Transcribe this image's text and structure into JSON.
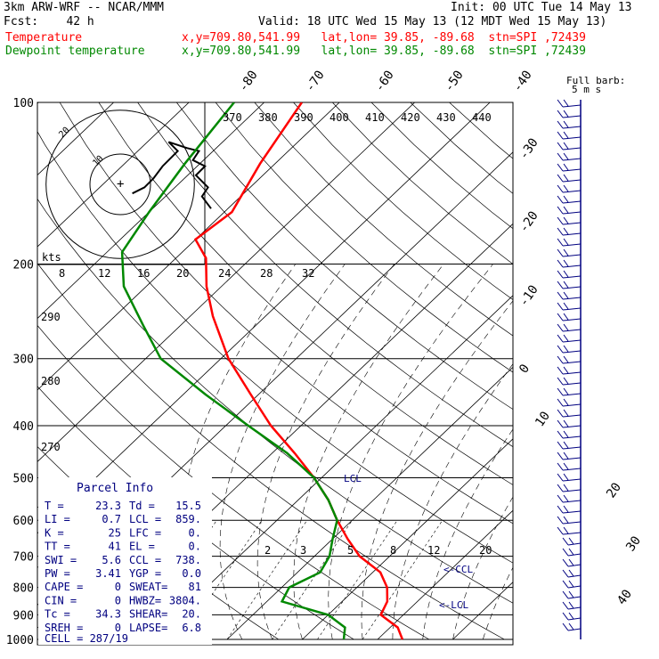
{
  "header": {
    "model": "3km ARW-WRF -- NCAR/MMM",
    "init": "Init: 00 UTC Tue 14 May 13",
    "fcst": "Fcst:    42 h",
    "valid": "Valid: 18 UTC Wed 15 May 13 (12 MDT Wed 15 May 13)",
    "temp_label": "Temperature",
    "temp_info": "x,y=709.80,541.99   lat,lon= 39.85, -89.68  stn=SPI ,72439",
    "dew_label": "Dewpoint temperature",
    "dew_info": "x,y=709.80,541.99   lat,lon= 39.85, -89.68  stn=SPI ,72439",
    "colors": {
      "temperature": "#ff0000",
      "dewpoint": "#008800",
      "parcel_info": "#000080"
    }
  },
  "chart_data": {
    "type": "skew-t",
    "ylabel_unit": "hPa",
    "pressure_levels": [
      100,
      200,
      300,
      400,
      500,
      600,
      700,
      800,
      900,
      1000
    ],
    "isotherm_labels": [
      "-80",
      "-70",
      "-60",
      "-50",
      "-40",
      "-30",
      "-20",
      "-10",
      "0",
      "10",
      "20",
      "30",
      "40"
    ],
    "theta_labels": [
      "370",
      "380",
      "390",
      "400",
      "410",
      "420",
      "430",
      "440"
    ],
    "mixing_ratio_labels": [
      "2",
      "3",
      "5",
      "8",
      "12",
      "20"
    ],
    "hodograph_speed_labels": [
      "8",
      "12",
      "16",
      "20",
      "24",
      "28",
      "32"
    ],
    "hodograph_unit": "kts",
    "hodograph_rings": [
      "10",
      "20"
    ],
    "side_labels": [
      "290",
      "280",
      "270"
    ],
    "lcl_text": "LCL",
    "ccl_text": "<-CCL",
    "lcl_arrow_text": "<-LCL",
    "barb_legend": [
      "Full barb:",
      "5 m s"
    ],
    "temperature_profile": [
      {
        "p": 100,
        "t": -65
      },
      {
        "p": 130,
        "t": -62
      },
      {
        "p": 160,
        "t": -59
      },
      {
        "p": 180,
        "t": -60
      },
      {
        "p": 195,
        "t": -56
      },
      {
        "p": 220,
        "t": -52
      },
      {
        "p": 250,
        "t": -47
      },
      {
        "p": 300,
        "t": -39
      },
      {
        "p": 350,
        "t": -31
      },
      {
        "p": 400,
        "t": -24
      },
      {
        "p": 450,
        "t": -17
      },
      {
        "p": 500,
        "t": -11
      },
      {
        "p": 550,
        "t": -6
      },
      {
        "p": 600,
        "t": -2
      },
      {
        "p": 650,
        "t": 2
      },
      {
        "p": 700,
        "t": 6
      },
      {
        "p": 750,
        "t": 11
      },
      {
        "p": 800,
        "t": 14
      },
      {
        "p": 850,
        "t": 16
      },
      {
        "p": 900,
        "t": 17
      },
      {
        "p": 950,
        "t": 21
      },
      {
        "p": 1000,
        "t": 23.3
      }
    ],
    "dewpoint_profile": [
      {
        "p": 100,
        "t": -74
      },
      {
        "p": 130,
        "t": -72
      },
      {
        "p": 160,
        "t": -70
      },
      {
        "p": 190,
        "t": -68
      },
      {
        "p": 220,
        "t": -63
      },
      {
        "p": 260,
        "t": -55
      },
      {
        "p": 300,
        "t": -48
      },
      {
        "p": 350,
        "t": -37
      },
      {
        "p": 400,
        "t": -27
      },
      {
        "p": 450,
        "t": -18
      },
      {
        "p": 500,
        "t": -11
      },
      {
        "p": 550,
        "t": -6
      },
      {
        "p": 600,
        "t": -2
      },
      {
        "p": 650,
        "t": 0
      },
      {
        "p": 700,
        "t": 2
      },
      {
        "p": 750,
        "t": 3
      },
      {
        "p": 800,
        "t": 1
      },
      {
        "p": 850,
        "t": 2
      },
      {
        "p": 900,
        "t": 10
      },
      {
        "p": 950,
        "t": 14
      },
      {
        "p": 1000,
        "t": 15.5
      }
    ],
    "hodograph": [
      {
        "u": 4,
        "v": 3
      },
      {
        "u": 8,
        "v": 1
      },
      {
        "u": 11,
        "v": -2
      },
      {
        "u": 14,
        "v": -6
      },
      {
        "u": 17,
        "v": -9
      },
      {
        "u": 19,
        "v": -11
      },
      {
        "u": 16,
        "v": -14
      },
      {
        "u": 22,
        "v": -12
      },
      {
        "u": 26,
        "v": -11
      },
      {
        "u": 24,
        "v": -8
      },
      {
        "u": 28,
        "v": -6
      },
      {
        "u": 25,
        "v": -3
      },
      {
        "u": 29,
        "v": 1
      },
      {
        "u": 27,
        "v": 4
      },
      {
        "u": 30,
        "v": 8
      }
    ]
  },
  "parcel": {
    "title": "Parcel Info",
    "rows": [
      [
        "T  =",
        "23.3",
        "Td =",
        "15.5"
      ],
      [
        "LI =",
        "0.7",
        "LCL =",
        "859."
      ],
      [
        "K  =",
        "25",
        "LFC =",
        "0."
      ],
      [
        "TT =",
        "41",
        "EL  =",
        "0."
      ],
      [
        "SWI =",
        "5.6",
        "CCL =",
        "738."
      ],
      [
        "PW =",
        "3.41",
        "YGP =",
        "0.0"
      ],
      [
        "CAPE =",
        "0",
        "SWEAT=",
        "81"
      ],
      [
        "CIN =",
        "0",
        "HWBZ=",
        "3804."
      ],
      [
        "Tc =",
        "34.3",
        "SHEAR=",
        "20."
      ],
      [
        "SREH =",
        "0",
        "LAPSE=",
        "6.8"
      ]
    ],
    "cell": "CELL = 287/19"
  }
}
